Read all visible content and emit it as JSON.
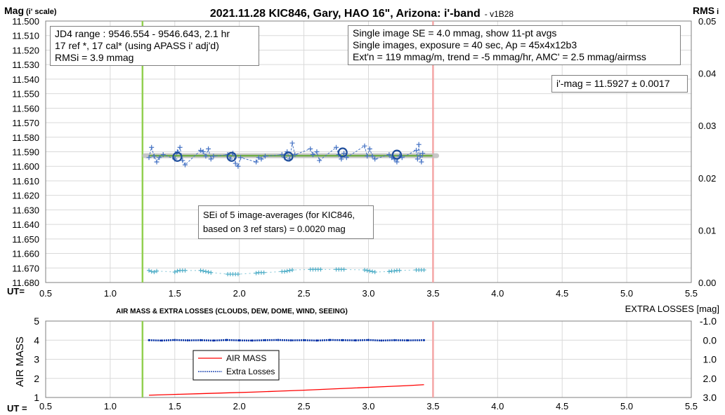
{
  "title": "2021.11.28 KIC846, Gary, HAO 16\", Arizona: i'-band",
  "version": "- v1B28",
  "upper_y_label_main": "Mag",
  "upper_y_label_sub": "(i' scale)",
  "upper_y2_label_main": "RMS",
  "upper_y2_label_sub": "i",
  "ut_label_upper": "UT=",
  "ut_label_lower": "UT =",
  "lower_title": "AIR MASS & EXTRA LOSSES (CLOUDS, DEW, DOME, WIND, SEEING)",
  "lower_y_label": "AIR MASS",
  "lower_y2_label": "EXTRA LOSSES [mag]",
  "info_left": [
    "JD4 range : 9546.554 - 9546.643, 2.1  hr",
    "17 ref *, 17 cal* (using APASS i' adj'd)",
    "RMSi = 3.9 mmag"
  ],
  "info_right": [
    "Single image SE = 4.0 mmag, show 11-pt avgs",
    "Single images, exposure = 40 sec, Ap = 45x4x12b3",
    "Ext'n = 119 mmag/m, trend = -5 mmag/hr, AMC' = 2.5 mmag/airmss"
  ],
  "imag_box": "i'-mag = 11.5927 ± 0.0017",
  "sei_box": [
    "SEi of 5 image-averages (for KIC846,",
    "based on 3 ref stars) = 0.0020 mag"
  ],
  "colors": {
    "grid": "#d9d9d9",
    "points": "#4472c4",
    "avg_circles": "#1f4e9c",
    "fit_line": "#70ad47",
    "fit_band": "#bfbfbf",
    "rms_points": "#4bacc6",
    "start_line": "#92d050",
    "end_line": "#f4a6a6",
    "airmass": "#ff0000",
    "losses": "#002fa7"
  },
  "chart_data": [
    {
      "type": "scatter",
      "panel": "upper",
      "xlim": [
        0.5,
        5.5
      ],
      "ylim": [
        11.68,
        11.5
      ],
      "y2lim": [
        0,
        0.05
      ],
      "xticks": [
        0.5,
        1.0,
        1.5,
        2.0,
        2.5,
        3.0,
        3.5,
        4.0,
        4.5,
        5.0,
        5.5
      ],
      "yticks": [
        11.5,
        11.51,
        11.52,
        11.53,
        11.54,
        11.55,
        11.56,
        11.57,
        11.58,
        11.59,
        11.6,
        11.61,
        11.62,
        11.63,
        11.64,
        11.65,
        11.66,
        11.67,
        11.68
      ],
      "y2ticks": [
        0,
        0.01,
        0.02,
        0.03,
        0.04,
        0.05
      ],
      "grid": true,
      "session_start_ut": 1.25,
      "session_end_ut": 3.5,
      "fit": {
        "mag": 11.5927,
        "x_range": [
          1.3,
          3.43
        ]
      },
      "series": [
        {
          "x": [
            1.3,
            1.32,
            1.34,
            1.36,
            1.38,
            1.41,
            1.5,
            1.52,
            1.54,
            1.56,
            1.58,
            1.7,
            1.72,
            1.74,
            1.76,
            1.78,
            1.8,
            1.91,
            1.93,
            1.95,
            1.97,
            1.99,
            2.01,
            2.13,
            2.15,
            2.17,
            2.2,
            2.33,
            2.35,
            2.37,
            2.39,
            2.41,
            2.43,
            2.55,
            2.57,
            2.6,
            2.62,
            2.75,
            2.77,
            2.79,
            2.81,
            2.83,
            2.97,
            2.99,
            3.01,
            3.03,
            3.05,
            3.16,
            3.18,
            3.2,
            3.22,
            3.24,
            3.26,
            3.37,
            3.38,
            3.39,
            3.4,
            3.41,
            3.42
          ],
          "y": [
            11.594,
            11.587,
            11.593,
            11.597,
            11.594,
            11.592,
            11.595,
            11.59,
            11.587,
            11.596,
            11.599,
            11.589,
            11.59,
            11.593,
            11.588,
            11.595,
            11.593,
            11.592,
            11.595,
            11.591,
            11.598,
            11.6,
            11.594,
            11.597,
            11.594,
            11.595,
            11.593,
            11.592,
            11.594,
            11.59,
            11.595,
            11.584,
            11.592,
            11.588,
            11.592,
            11.59,
            11.596,
            11.587,
            11.592,
            11.595,
            11.591,
            11.594,
            11.586,
            11.593,
            11.588,
            11.593,
            11.595,
            11.592,
            11.594,
            11.595,
            11.597,
            11.593,
            11.594,
            11.589,
            11.595,
            11.585,
            11.593,
            11.597,
            11.591
          ]
        },
        {
          "x": [
            1.52,
            1.94,
            2.38,
            2.8,
            3.22
          ],
          "y": [
            11.5935,
            11.5935,
            11.5933,
            11.5905,
            11.592
          ]
        },
        {
          "x": [
            1.3,
            1.32,
            1.34,
            1.36,
            1.5,
            1.52,
            1.54,
            1.56,
            1.58,
            1.7,
            1.72,
            1.74,
            1.76,
            1.78,
            1.91,
            1.93,
            1.95,
            1.97,
            1.99,
            2.13,
            2.15,
            2.17,
            2.19,
            2.33,
            2.35,
            2.37,
            2.39,
            2.41,
            2.55,
            2.57,
            2.59,
            2.61,
            2.63,
            2.75,
            2.77,
            2.79,
            2.81,
            2.97,
            2.99,
            3.01,
            3.03,
            3.05,
            3.16,
            3.18,
            3.2,
            3.22,
            3.24,
            3.37,
            3.39,
            3.41,
            3.43
          ],
          "y2": [
            0.0023,
            0.0021,
            0.002,
            0.0022,
            0.002,
            0.0022,
            0.0023,
            0.0023,
            0.0023,
            0.0023,
            0.0022,
            0.0021,
            0.002,
            0.0019,
            0.0016,
            0.0016,
            0.0016,
            0.0016,
            0.0016,
            0.0018,
            0.0019,
            0.0019,
            0.0019,
            0.0021,
            0.0021,
            0.0022,
            0.0023,
            0.0024,
            0.0025,
            0.0025,
            0.0025,
            0.0025,
            0.0025,
            0.0025,
            0.0025,
            0.0025,
            0.0025,
            0.0024,
            0.0023,
            0.0022,
            0.0021,
            0.002,
            0.0021,
            0.0022,
            0.0022,
            0.0023,
            0.0023,
            0.0024,
            0.0024,
            0.0024,
            0.0024
          ]
        }
      ]
    },
    {
      "type": "line",
      "panel": "lower",
      "xlim": [
        0.5,
        5.5
      ],
      "ylim": [
        1,
        5
      ],
      "y2lim": [
        3.0,
        -1.0
      ],
      "xticks": [
        0.5,
        1.0,
        1.5,
        2.0,
        2.5,
        3.0,
        3.5,
        4.0,
        4.5,
        5.0,
        5.5
      ],
      "yticks": [
        1,
        2,
        3,
        4,
        5
      ],
      "y2ticks": [
        -1.0,
        0.0,
        1.0,
        2.0,
        3.0
      ],
      "grid": true,
      "legend": "center-left",
      "series": [
        {
          "name": "AIR MASS",
          "x": [
            1.3,
            1.5,
            1.7,
            1.9,
            2.1,
            2.3,
            2.5,
            2.7,
            2.9,
            3.1,
            3.3,
            3.43
          ],
          "y": [
            1.12,
            1.16,
            1.2,
            1.24,
            1.28,
            1.33,
            1.38,
            1.44,
            1.5,
            1.56,
            1.62,
            1.67
          ]
        },
        {
          "name": "Extra Losses",
          "x": [
            1.3,
            1.4,
            1.5,
            1.6,
            1.7,
            1.8,
            1.9,
            2.0,
            2.1,
            2.2,
            2.3,
            2.4,
            2.5,
            2.6,
            2.7,
            2.8,
            2.9,
            3.0,
            3.1,
            3.2,
            3.3,
            3.43
          ],
          "y2": [
            0.0,
            0.02,
            -0.01,
            0.01,
            0.0,
            0.02,
            -0.01,
            0.01,
            0.02,
            0.0,
            -0.01,
            0.01,
            0.0,
            0.02,
            -0.01,
            0.0,
            0.01,
            -0.01,
            0.02,
            0.0,
            0.01,
            0.0
          ]
        }
      ]
    }
  ]
}
